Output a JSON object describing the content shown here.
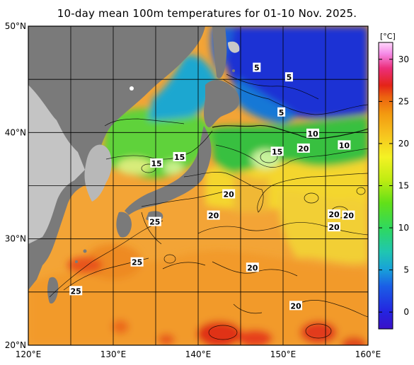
{
  "title": "10-day mean 100m temperatures for 01-10 Nov. 2025.",
  "map": {
    "lon_range": [
      120,
      160
    ],
    "lat_range": [
      20,
      50
    ],
    "lon_ticks": [
      {
        "value": 120,
        "label": "120°E"
      },
      {
        "value": 130,
        "label": "130°E"
      },
      {
        "value": 140,
        "label": "140°E"
      },
      {
        "value": 150,
        "label": "150°E"
      },
      {
        "value": 160,
        "label": "160°E"
      }
    ],
    "lat_ticks": [
      {
        "value": 50,
        "label": "50°N"
      },
      {
        "value": 40,
        "label": "40°N"
      },
      {
        "value": 30,
        "label": "30°N"
      },
      {
        "value": 20,
        "label": "20°N"
      }
    ],
    "contour_labels": [
      {
        "text": "5",
        "lon": 146.9,
        "lat": 46.1
      },
      {
        "text": "5",
        "lon": 150.7,
        "lat": 45.2
      },
      {
        "text": "5",
        "lon": 149.8,
        "lat": 41.9
      },
      {
        "text": "10",
        "lon": 153.5,
        "lat": 39.9
      },
      {
        "text": "10",
        "lon": 157.2,
        "lat": 38.8
      },
      {
        "text": "20",
        "lon": 152.4,
        "lat": 38.5
      },
      {
        "text": "15",
        "lon": 149.3,
        "lat": 38.2
      },
      {
        "text": "15",
        "lon": 137.8,
        "lat": 37.7
      },
      {
        "text": "15",
        "lon": 135.1,
        "lat": 37.1
      },
      {
        "text": "20",
        "lon": 143.6,
        "lat": 34.2
      },
      {
        "text": "20",
        "lon": 141.8,
        "lat": 32.2
      },
      {
        "text": "25",
        "lon": 134.9,
        "lat": 31.6
      },
      {
        "text": "20",
        "lon": 157.7,
        "lat": 32.2
      },
      {
        "text": "20",
        "lon": 156.0,
        "lat": 32.3
      },
      {
        "text": "20",
        "lon": 156.0,
        "lat": 31.1
      },
      {
        "text": "25",
        "lon": 132.8,
        "lat": 27.8
      },
      {
        "text": "25",
        "lon": 125.6,
        "lat": 25.1
      },
      {
        "text": "20",
        "lon": 146.4,
        "lat": 27.3
      },
      {
        "text": "20",
        "lon": 151.5,
        "lat": 23.7
      }
    ]
  },
  "colorbar": {
    "unit": "[°C]",
    "min": -2,
    "max": 32,
    "ticks": [
      0,
      5,
      10,
      15,
      20,
      25,
      30
    ],
    "tick_labels": [
      "0",
      "5",
      "10",
      "15",
      "20",
      "25",
      "30"
    ],
    "colors": [
      "#2a10c0",
      "#1f2ee6",
      "#1669e8",
      "#13a8d6",
      "#1fc7b6",
      "#2fd85c",
      "#5fe11e",
      "#b8ec12",
      "#f2f222",
      "#f7c21e",
      "#f59a10",
      "#ef6a10",
      "#e82616",
      "#f2357a",
      "#f58ae6",
      "#ffd6fb"
    ]
  },
  "colors": {
    "land": "#9a9a9a",
    "land_dark": "#6e6e6e",
    "land_light": "#c9c9c9",
    "deep_cold": "#1a2ed6",
    "cold": "#2f7fe8",
    "cool": "#35c255",
    "mild": "#9be620",
    "warm": "#f0e528",
    "hot": "#f4b838",
    "hotter": "#ee7d1a",
    "hottest": "#e03018"
  }
}
